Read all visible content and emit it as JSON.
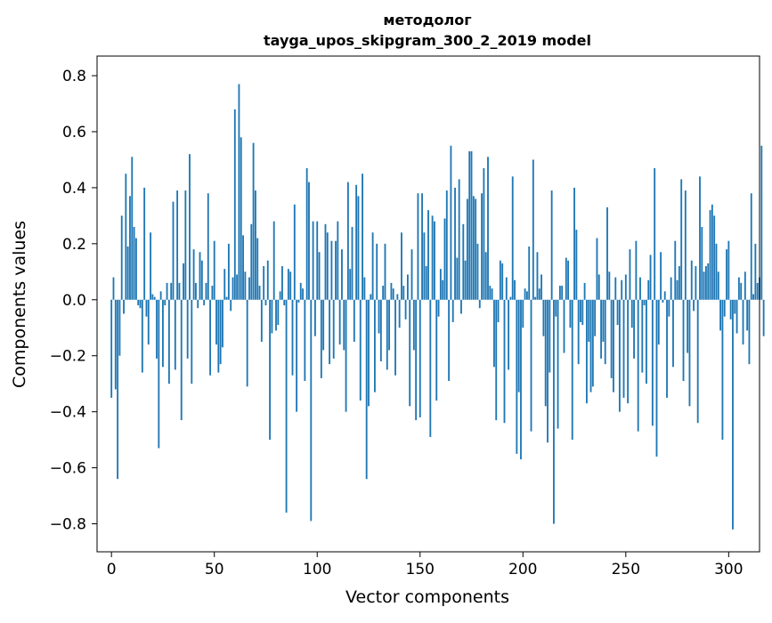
{
  "chart_data": {
    "type": "bar",
    "title_line1": "методолог",
    "title_line2": "tayga_upos_skipgram_300_2_2019 model",
    "xlabel": "Vector components",
    "ylabel": "Components values",
    "xlim": [
      -7,
      315
    ],
    "ylim": [
      -0.9,
      0.87
    ],
    "xticks": [
      0,
      50,
      100,
      150,
      200,
      250,
      300
    ],
    "xtick_labels": [
      "0",
      "50",
      "100",
      "150",
      "200",
      "250",
      "300"
    ],
    "yticks": [
      -0.8,
      -0.6,
      -0.4,
      -0.2,
      0.0,
      0.2,
      0.4,
      0.6,
      0.8
    ],
    "ytick_labels": [
      "−0.8",
      "−0.6",
      "−0.4",
      "−0.2",
      "0.0",
      "0.2",
      "0.4",
      "0.6",
      "0.8"
    ],
    "bar_color": "#1f77b4",
    "values": [
      -0.35,
      0.08,
      -0.32,
      -0.64,
      -0.2,
      0.3,
      -0.05,
      0.45,
      0.19,
      0.37,
      0.51,
      0.26,
      0.22,
      -0.02,
      -0.03,
      -0.26,
      0.4,
      -0.06,
      -0.16,
      0.24,
      0.02,
      0.01,
      -0.21,
      -0.53,
      0.03,
      -0.24,
      -0.02,
      0.06,
      -0.3,
      0.06,
      0.35,
      -0.25,
      0.39,
      0.06,
      -0.43,
      0.13,
      0.39,
      -0.21,
      0.52,
      -0.3,
      0.18,
      0.06,
      -0.03,
      0.17,
      0.14,
      -0.02,
      0.06,
      0.38,
      -0.27,
      0.05,
      0.21,
      -0.16,
      -0.26,
      -0.23,
      -0.17,
      0.11,
      0.01,
      0.2,
      -0.04,
      0.08,
      0.68,
      0.09,
      0.77,
      0.58,
      0.23,
      0.1,
      -0.31,
      0.08,
      0.27,
      0.56,
      0.39,
      0.22,
      0.05,
      -0.15,
      0.12,
      -0.02,
      0.14,
      -0.5,
      -0.12,
      0.28,
      -0.11,
      -0.09,
      0.03,
      0.12,
      -0.02,
      -0.76,
      0.11,
      0.1,
      -0.27,
      0.34,
      -0.4,
      -0.01,
      0.06,
      0.04,
      -0.29,
      0.47,
      0.42,
      -0.79,
      0.28,
      -0.13,
      0.28,
      0.17,
      -0.28,
      -0.18,
      0.27,
      0.24,
      -0.23,
      0.21,
      -0.21,
      0.21,
      0.28,
      -0.16,
      0.18,
      -0.18,
      -0.4,
      0.42,
      0.11,
      0.26,
      -0.15,
      0.41,
      0.37,
      -0.36,
      0.45,
      0.08,
      -0.64,
      -0.38,
      0.02,
      0.24,
      -0.33,
      0.2,
      -0.12,
      -0.22,
      0.05,
      0.2,
      -0.25,
      -0.18,
      0.06,
      0.04,
      -0.27,
      0.02,
      -0.1,
      0.24,
      0.05,
      -0.07,
      0.09,
      -0.38,
      0.18,
      -0.18,
      -0.43,
      0.38,
      -0.42,
      0.38,
      0.24,
      0.12,
      0.32,
      -0.49,
      0.3,
      0.28,
      -0.36,
      -0.06,
      0.11,
      0.07,
      0.29,
      0.39,
      -0.29,
      0.55,
      -0.08,
      0.4,
      0.15,
      0.43,
      -0.05,
      0.27,
      0.14,
      0.36,
      0.53,
      0.53,
      0.37,
      0.36,
      0.2,
      -0.03,
      0.38,
      0.47,
      0.17,
      0.51,
      0.05,
      0.04,
      -0.24,
      -0.43,
      -0.08,
      0.14,
      0.13,
      -0.44,
      0.08,
      -0.25,
      0.01,
      0.44,
      0.07,
      -0.55,
      -0.33,
      -0.57,
      -0.1,
      0.04,
      0.03,
      0.19,
      -0.47,
      0.5,
      0.01,
      0.17,
      0.04,
      0.09,
      -0.13,
      -0.38,
      -0.51,
      -0.26,
      0.39,
      -0.8,
      -0.06,
      -0.46,
      0.05,
      0.05,
      -0.19,
      0.15,
      0.14,
      -0.1,
      -0.5,
      0.4,
      0.25,
      -0.23,
      -0.08,
      -0.09,
      0.06,
      -0.37,
      -0.15,
      -0.33,
      -0.31,
      -0.13,
      0.22,
      0.09,
      -0.21,
      -0.15,
      -0.23,
      0.33,
      0.1,
      -0.28,
      -0.33,
      0.08,
      -0.09,
      -0.4,
      0.07,
      -0.35,
      0.09,
      -0.37,
      0.18,
      -0.1,
      -0.21,
      0.21,
      -0.47,
      0.08,
      -0.26,
      -0.02,
      -0.3,
      0.07,
      0.16,
      -0.45,
      0.47,
      -0.56,
      -0.16,
      0.17,
      -0.01,
      0.03,
      -0.35,
      -0.06,
      0.08,
      -0.24,
      0.21,
      0.07,
      0.12,
      0.43,
      -0.29,
      0.39,
      -0.19,
      -0.38,
      0.14,
      -0.04,
      0.12,
      -0.44,
      0.44,
      0.26,
      0.1,
      0.12,
      0.13,
      0.32,
      0.34,
      0.3,
      0.2,
      0.1,
      -0.11,
      -0.5,
      -0.06,
      0.18,
      0.21,
      -0.07,
      -0.82,
      -0.05,
      -0.12,
      0.08,
      0.06,
      -0.16,
      0.1,
      -0.11,
      -0.23,
      0.38,
      0.02,
      0.2,
      0.06,
      0.08,
      0.55,
      -0.13
    ]
  }
}
